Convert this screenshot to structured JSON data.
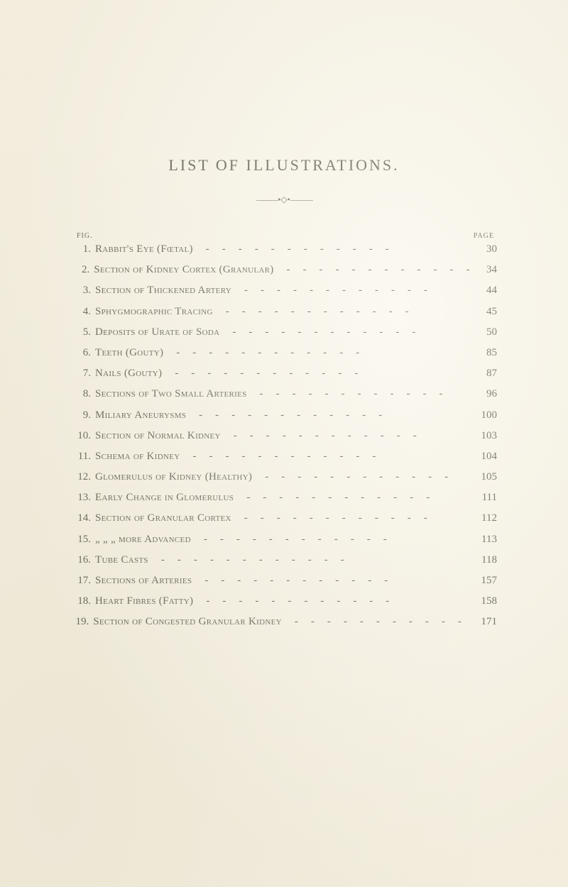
{
  "title": "LIST OF ILLUSTRATIONS.",
  "ornament_dash": "———",
  "ornament_center": "•◇•",
  "header_left": "FIG.",
  "header_right": "PAGE",
  "leader_glyphs": "------------",
  "entries": [
    {
      "n": "1.",
      "t": "Rabbit's Eye (Fœtal)",
      "p": "30"
    },
    {
      "n": "2.",
      "t": "Section of Kidney Cortex (Granular)",
      "p": "34"
    },
    {
      "n": "3.",
      "t": "Section of Thickened Artery",
      "p": "44"
    },
    {
      "n": "4.",
      "t": "Sphygmographic Tracing",
      "p": "45"
    },
    {
      "n": "5.",
      "t": "Deposits of Urate of Soda",
      "p": "50"
    },
    {
      "n": "6.",
      "t": "Teeth (Gouty)",
      "p": "85"
    },
    {
      "n": "7.",
      "t": "Nails (Gouty)",
      "p": "87"
    },
    {
      "n": "8.",
      "t": "Sections of Two Small Arteries",
      "p": "96"
    },
    {
      "n": "9.",
      "t": "Miliary Aneurysms",
      "p": "100"
    },
    {
      "n": "10.",
      "t": "Section of Normal Kidney",
      "p": "103"
    },
    {
      "n": "11.",
      "t": "Schema of Kidney",
      "p": "104"
    },
    {
      "n": "12.",
      "t": "Glomerulus of Kidney (Healthy)",
      "p": "105"
    },
    {
      "n": "13.",
      "t": "Early Change in Glomerulus",
      "p": "111"
    },
    {
      "n": "14.",
      "t": "Section of Granular Cortex",
      "p": "112"
    },
    {
      "n": "15.",
      "t": "     „          „          „     more Advanced",
      "p": "113"
    },
    {
      "n": "16.",
      "t": "Tube Casts",
      "p": "118"
    },
    {
      "n": "17.",
      "t": "Sections of Arteries",
      "p": "157"
    },
    {
      "n": "18.",
      "t": "Heart Fibres (Fatty)",
      "p": "158"
    },
    {
      "n": "19.",
      "t": "Section of Congested Granular Kidney",
      "p": "171"
    }
  ]
}
